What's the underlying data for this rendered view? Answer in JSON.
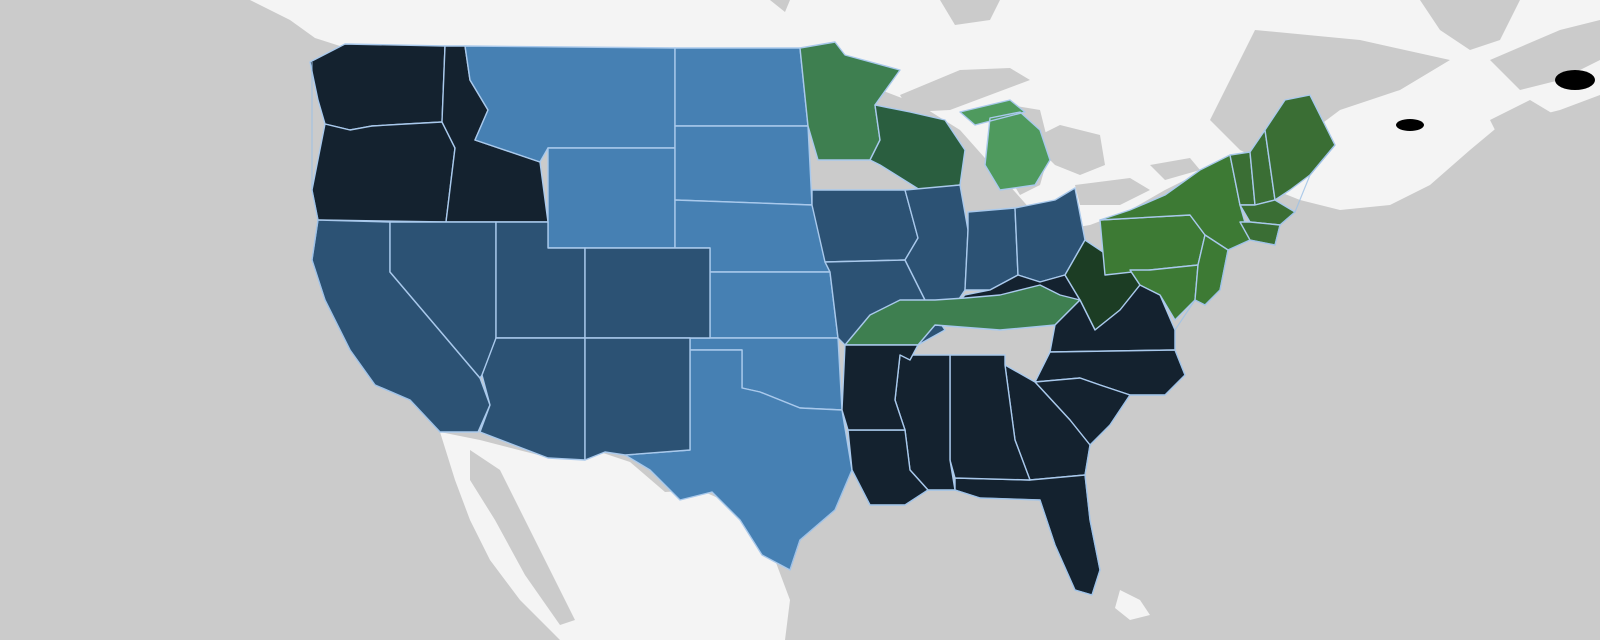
{
  "map": {
    "colors": {
      "ocean": "#cbcbcb",
      "land": "#f4f4f4",
      "state_border": "#a9c9ec",
      "tiers": {
        "navy": "#14222f",
        "steel_blue": "#2c5274",
        "light_blue": "#4680b3",
        "dark_green": "#2a5e3f",
        "mid_green": "#3e7f50",
        "light_green": "#4f9a5e",
        "forest_green": "#3a6e34",
        "northeast_green": "#3d7a34",
        "deep_green": "#1c3d24"
      }
    },
    "states": [
      {
        "id": "WA",
        "tier": "navy"
      },
      {
        "id": "OR",
        "tier": "navy"
      },
      {
        "id": "ID",
        "tier": "navy"
      },
      {
        "id": "CA",
        "tier": "steel_blue"
      },
      {
        "id": "NV",
        "tier": "steel_blue"
      },
      {
        "id": "UT",
        "tier": "steel_blue"
      },
      {
        "id": "AZ",
        "tier": "steel_blue"
      },
      {
        "id": "CO",
        "tier": "steel_blue"
      },
      {
        "id": "NM",
        "tier": "steel_blue"
      },
      {
        "id": "MT",
        "tier": "light_blue"
      },
      {
        "id": "WY",
        "tier": "light_blue"
      },
      {
        "id": "ND",
        "tier": "light_blue"
      },
      {
        "id": "SD",
        "tier": "light_blue"
      },
      {
        "id": "NE",
        "tier": "light_blue"
      },
      {
        "id": "KS",
        "tier": "light_blue"
      },
      {
        "id": "OK",
        "tier": "light_blue"
      },
      {
        "id": "TX",
        "tier": "light_blue"
      },
      {
        "id": "MN",
        "tier": "mid_green"
      },
      {
        "id": "WI",
        "tier": "dark_green"
      },
      {
        "id": "MI",
        "tier": "light_green"
      },
      {
        "id": "IA",
        "tier": "steel_blue"
      },
      {
        "id": "MO",
        "tier": "steel_blue"
      },
      {
        "id": "IL",
        "tier": "steel_blue"
      },
      {
        "id": "IN",
        "tier": "steel_blue"
      },
      {
        "id": "OH",
        "tier": "steel_blue"
      },
      {
        "id": "KY",
        "tier": "navy"
      },
      {
        "id": "TN",
        "tier": "mid_green"
      },
      {
        "id": "WV",
        "tier": "deep_green"
      },
      {
        "id": "AR",
        "tier": "navy"
      },
      {
        "id": "LA",
        "tier": "navy"
      },
      {
        "id": "MS",
        "tier": "navy"
      },
      {
        "id": "AL",
        "tier": "navy"
      },
      {
        "id": "GA",
        "tier": "navy"
      },
      {
        "id": "FL",
        "tier": "navy"
      },
      {
        "id": "SC",
        "tier": "navy"
      },
      {
        "id": "NC",
        "tier": "navy"
      },
      {
        "id": "VA",
        "tier": "navy"
      },
      {
        "id": "PA",
        "tier": "northeast_green"
      },
      {
        "id": "NY",
        "tier": "northeast_green"
      },
      {
        "id": "MD",
        "tier": "northeast_green"
      },
      {
        "id": "NJ",
        "tier": "northeast_green"
      },
      {
        "id": "VT",
        "tier": "forest_green"
      },
      {
        "id": "NH",
        "tier": "forest_green"
      },
      {
        "id": "ME",
        "tier": "forest_green"
      },
      {
        "id": "MA",
        "tier": "forest_green"
      },
      {
        "id": "CT",
        "tier": "forest_green"
      }
    ]
  }
}
